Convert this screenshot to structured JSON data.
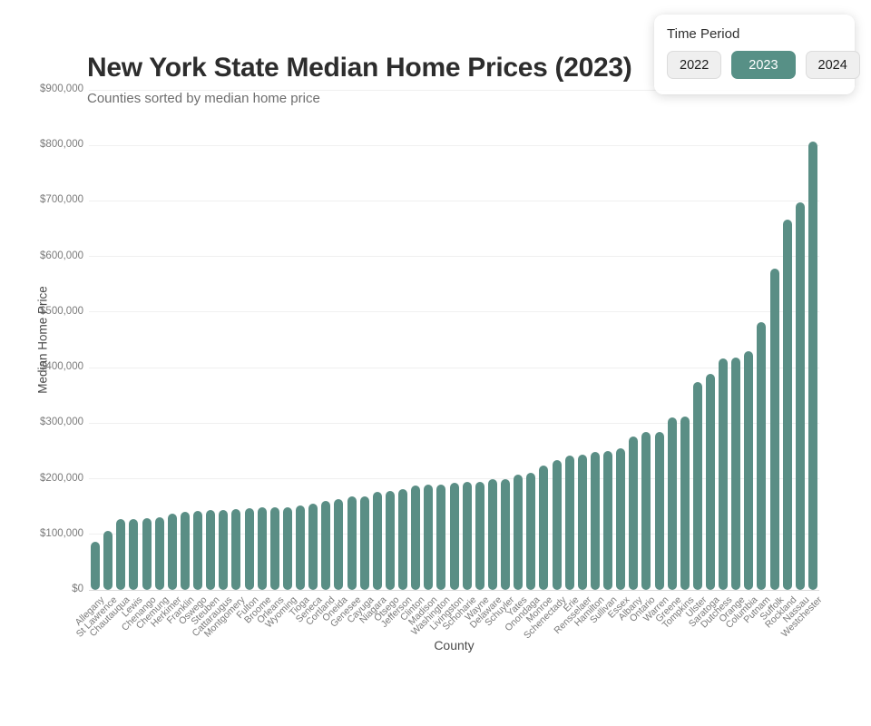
{
  "header": {
    "title": "New York State Median Home Prices (2023)",
    "subtitle": "Counties sorted by median home price"
  },
  "time_period_panel": {
    "label": "Time Period",
    "options": [
      "2022",
      "2023",
      "2024"
    ],
    "selected": "2023"
  },
  "chart_data": {
    "type": "bar",
    "title": "New York State Median Home Prices (2023)",
    "subtitle": "Counties sorted by median home price",
    "xlabel": "County",
    "ylabel": "Median Home Price",
    "ylim": [
      0,
      900000
    ],
    "ytick_values": [
      0,
      100000,
      200000,
      300000,
      400000,
      500000,
      600000,
      700000,
      800000,
      900000
    ],
    "ytick_labels": [
      "$0",
      "$100,000",
      "$200,000",
      "$300,000",
      "$400,000",
      "$500,000",
      "$600,000",
      "$700,000",
      "$800,000",
      "$900,000"
    ],
    "grid": "horizontal",
    "legend": "none",
    "bar_color": "#5A8E85",
    "categories": [
      "Allegany",
      "St Lawrence",
      "Chautauqua",
      "Lewis",
      "Chenango",
      "Chemung",
      "Herkimer",
      "Franklin",
      "Oswego",
      "Steuben",
      "Cattaraugus",
      "Montgomery",
      "Fulton",
      "Broome",
      "Orleans",
      "Wyoming",
      "Tioga",
      "Seneca",
      "Cortland",
      "Oneida",
      "Genesee",
      "Cayuga",
      "Niagara",
      "Otsego",
      "Jefferson",
      "Clinton",
      "Madison",
      "Washington",
      "Livingston",
      "Schoharie",
      "Wayne",
      "Delaware",
      "Schuyler",
      "Yates",
      "Onondaga",
      "Monroe",
      "Schenectady",
      "Erie",
      "Rensselaer",
      "Hamilton",
      "Sullivan",
      "Essex",
      "Albany",
      "Ontario",
      "Warren",
      "Greene",
      "Tompkins",
      "Ulster",
      "Saratoga",
      "Dutchess",
      "Orange",
      "Columbia",
      "Putnam",
      "Suffolk",
      "Rockland",
      "Nassau",
      "Westchester"
    ],
    "values": [
      87000,
      106000,
      128000,
      128000,
      129000,
      130000,
      138000,
      141000,
      142000,
      143000,
      143500,
      145000,
      147000,
      148000,
      148500,
      149000,
      152000,
      155000,
      160000,
      164000,
      168000,
      169000,
      176000,
      178000,
      182000,
      188000,
      189000,
      190000,
      192000,
      194000,
      195000,
      199000,
      200000,
      208000,
      210000,
      224000,
      234000,
      241000,
      243000,
      249000,
      250000,
      255000,
      276000,
      284000,
      285000,
      310000,
      312000,
      374000,
      389000,
      416000,
      418000,
      430000,
      482000,
      578000,
      667000,
      698000,
      807000
    ]
  },
  "colors": {
    "bar": "#5A8E85",
    "grid_line": "#F0F0F0",
    "axis_line": "#D9D9D9",
    "tick_text": "#7A7A7A",
    "axis_title_text": "#4A4A4A",
    "title_text": "#2D2D2D",
    "subtitle_text": "#6E6E6E",
    "active_button_bg": "#579086",
    "active_button_text": "#FFFFFF",
    "inactive_button_bg": "#EFEFEF",
    "inactive_button_border": "#DCDCDC",
    "panel_bg": "#FFFFFF"
  }
}
